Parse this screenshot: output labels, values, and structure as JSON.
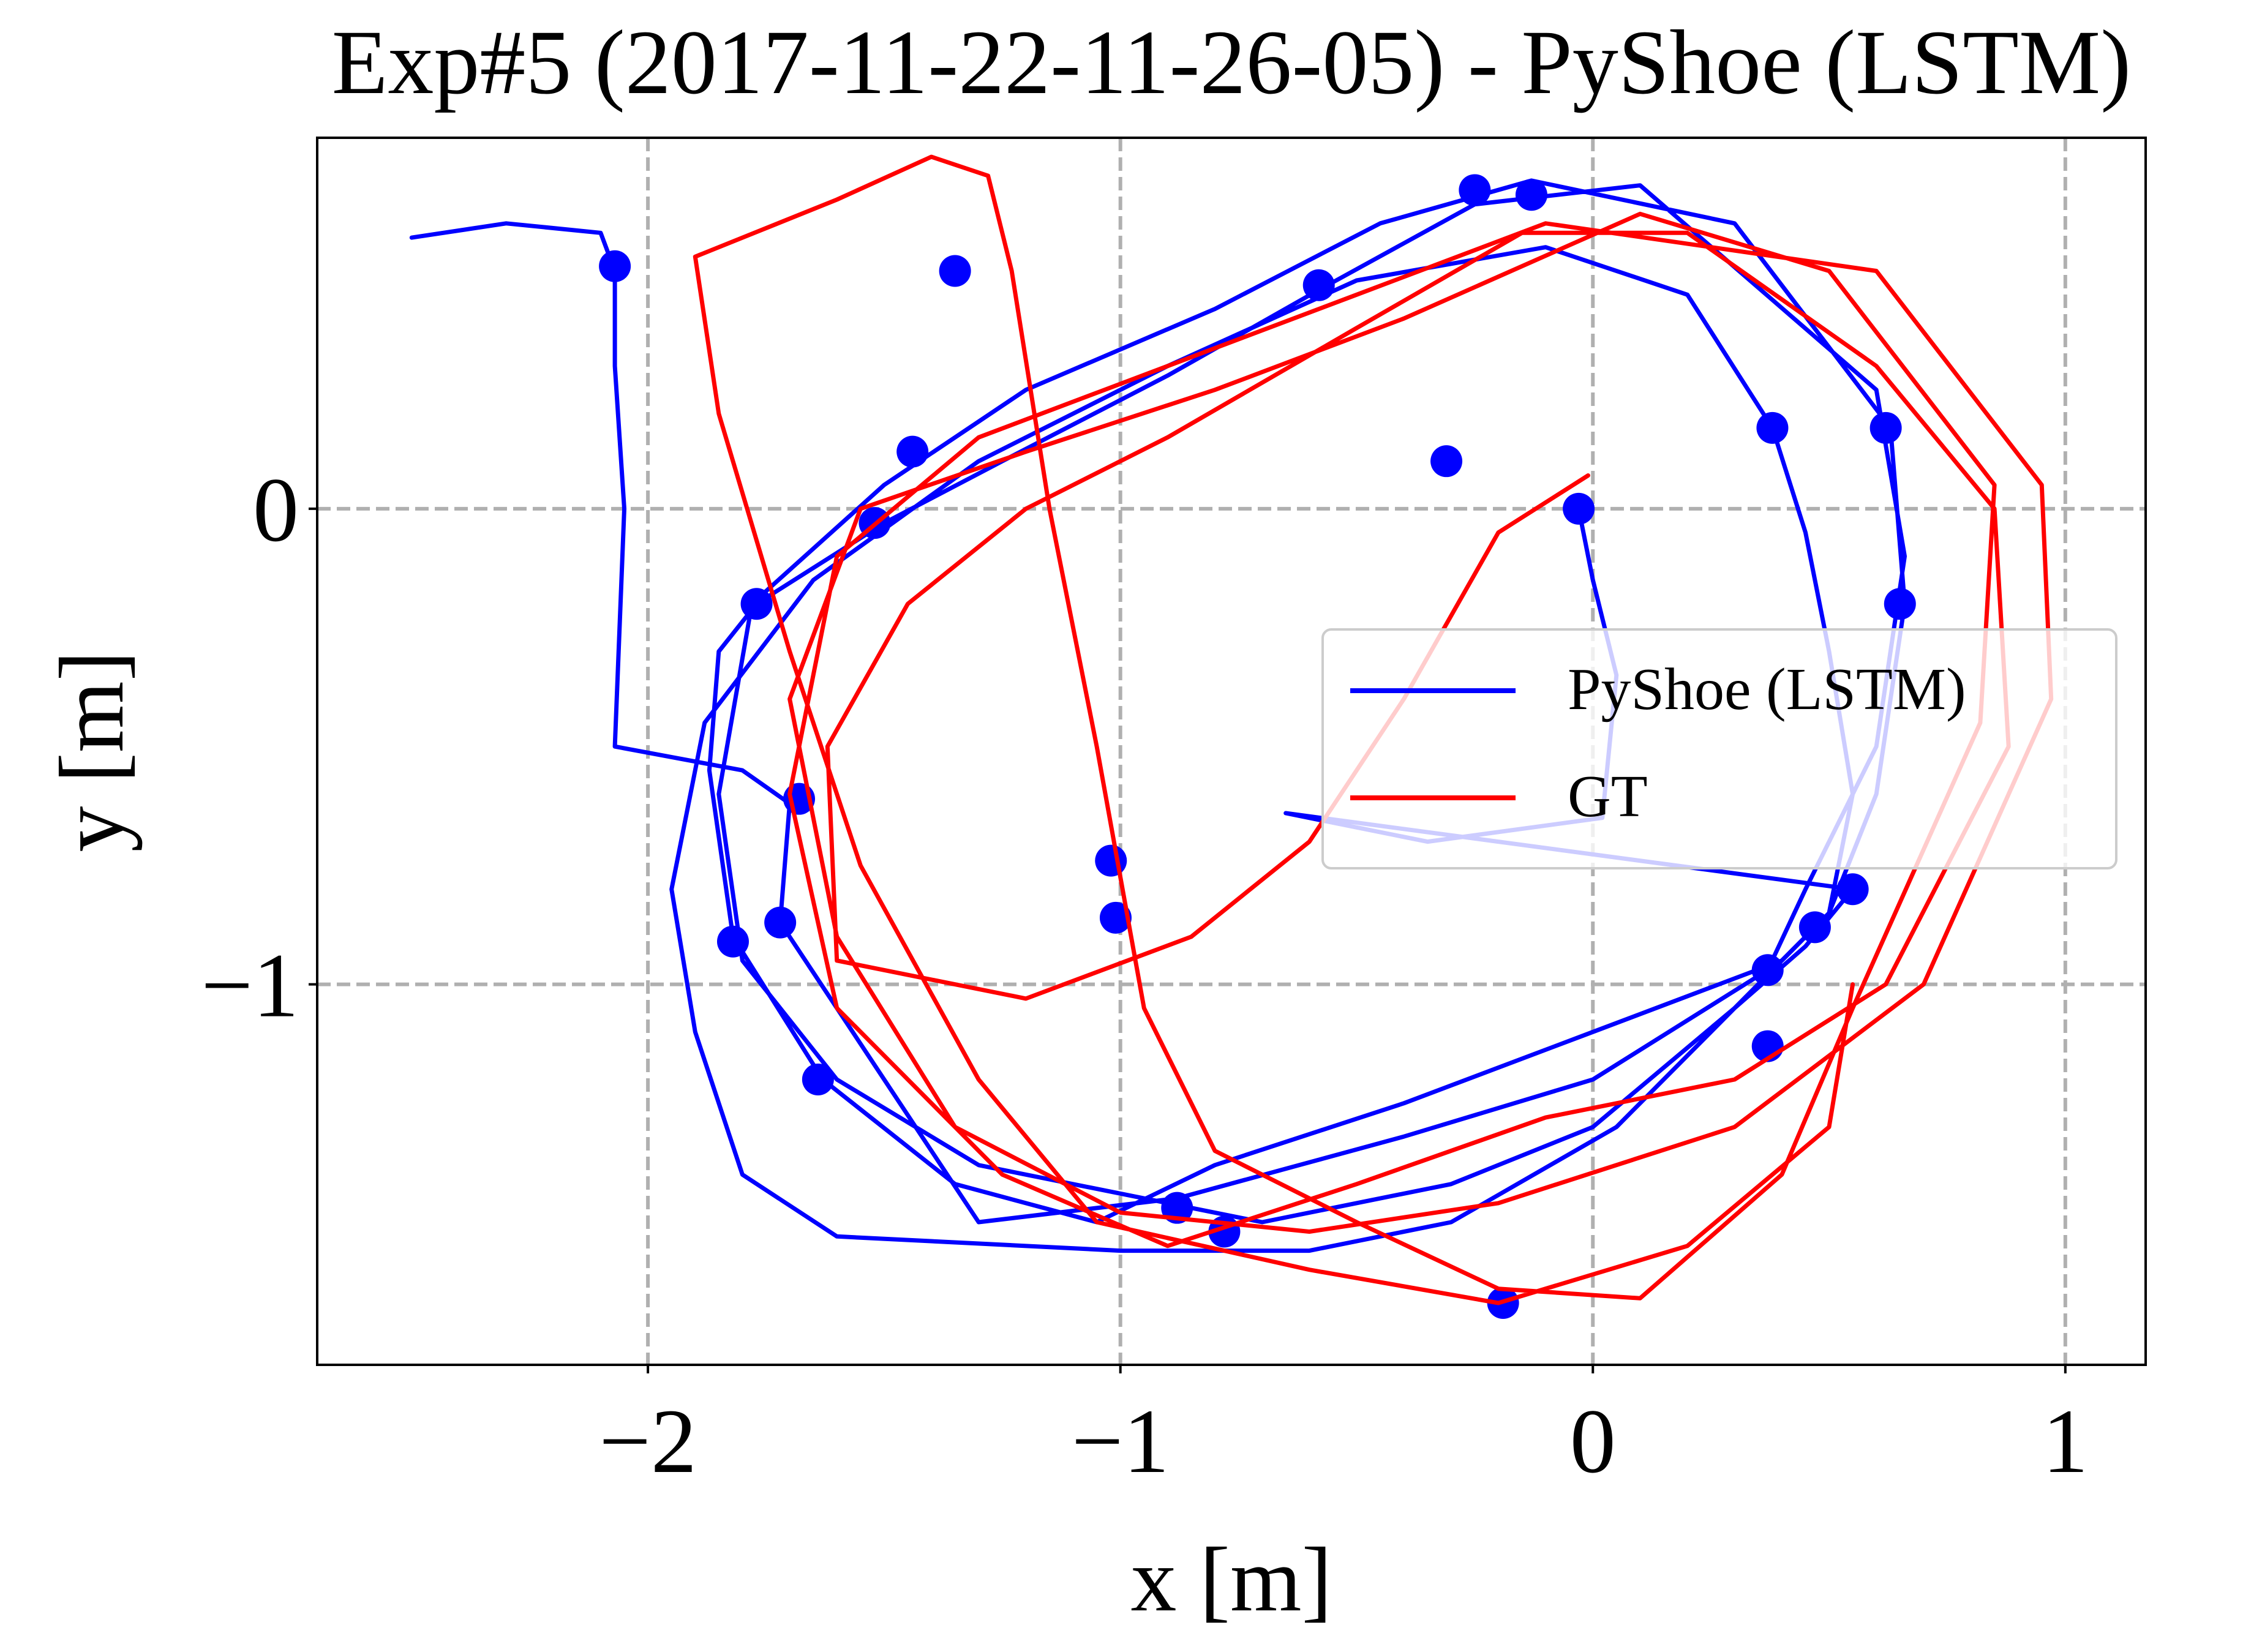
{
  "chart_data": {
    "type": "line",
    "title": "Exp#5 (2017-11-22-11-26-05) - PyShoe (LSTM)",
    "xlabel": "x [m]",
    "ylabel": "y [m]",
    "xlim": [
      -2.7,
      1.17
    ],
    "ylim": [
      -1.8,
      0.78
    ],
    "xticks": [
      -2,
      -1,
      0,
      1
    ],
    "xtick_labels": [
      "−2",
      "−1",
      "0",
      "1"
    ],
    "yticks": [
      0,
      -1
    ],
    "ytick_labels": [
      "0",
      "−1"
    ],
    "grid": true,
    "legend_position": "center-right",
    "series": [
      {
        "name": "PyShoe (LSTM)",
        "color": "#0000ff",
        "points": [
          [
            -0.03,
            0.0
          ],
          [
            0.0,
            -0.15
          ],
          [
            0.05,
            -0.35
          ],
          [
            0.02,
            -0.65
          ],
          [
            -0.35,
            -0.7
          ],
          [
            -0.65,
            -0.64
          ],
          [
            0.55,
            -0.8
          ],
          [
            0.45,
            -0.92
          ],
          [
            0.3,
            -1.05
          ],
          [
            0.05,
            -1.3
          ],
          [
            -0.3,
            -1.5
          ],
          [
            -0.6,
            -1.56
          ],
          [
            -1.0,
            -1.56
          ],
          [
            -1.6,
            -1.53
          ],
          [
            -1.8,
            -1.4
          ],
          [
            -1.9,
            -1.1
          ],
          [
            -1.95,
            -0.8
          ],
          [
            -1.88,
            -0.45
          ],
          [
            -1.65,
            -0.15
          ],
          [
            -1.3,
            0.1
          ],
          [
            -0.9,
            0.3
          ],
          [
            -0.5,
            0.48
          ],
          [
            -0.1,
            0.55
          ],
          [
            0.2,
            0.45
          ],
          [
            0.38,
            0.17
          ],
          [
            0.45,
            -0.05
          ],
          [
            0.5,
            -0.3
          ],
          [
            0.55,
            -0.6
          ],
          [
            0.5,
            -0.85
          ],
          [
            0.3,
            -1.05
          ],
          [
            0.0,
            -1.3
          ],
          [
            -0.3,
            -1.42
          ],
          [
            -0.7,
            -1.5
          ],
          [
            -0.9,
            -1.46
          ],
          [
            -1.3,
            -1.38
          ],
          [
            -1.6,
            -1.2
          ],
          [
            -1.8,
            -0.95
          ],
          [
            -1.85,
            -0.6
          ],
          [
            -1.78,
            -0.2
          ],
          [
            -1.5,
            0.05
          ],
          [
            -1.2,
            0.25
          ],
          [
            -0.8,
            0.42
          ],
          [
            -0.45,
            0.6
          ],
          [
            -0.13,
            0.69
          ],
          [
            0.3,
            0.6
          ],
          [
            0.63,
            0.17
          ],
          [
            0.66,
            -0.2
          ],
          [
            0.6,
            -0.6
          ],
          [
            0.5,
            -0.85
          ],
          [
            0.4,
            -0.95
          ],
          [
            0.0,
            -1.1
          ],
          [
            -0.4,
            -1.25
          ],
          [
            -0.8,
            -1.38
          ],
          [
            -1.05,
            -1.5
          ],
          [
            -1.35,
            -1.42
          ],
          [
            -1.63,
            -1.2
          ],
          [
            -1.82,
            -0.9
          ],
          [
            -1.87,
            -0.55
          ],
          [
            -1.85,
            -0.3
          ],
          [
            -1.77,
            -0.2
          ],
          [
            -1.5,
            -0.03
          ],
          [
            -1.25,
            0.1
          ],
          [
            -0.9,
            0.28
          ],
          [
            -0.58,
            0.46
          ],
          [
            -0.25,
            0.64
          ],
          [
            0.1,
            0.68
          ],
          [
            0.6,
            0.25
          ],
          [
            0.66,
            -0.1
          ],
          [
            0.6,
            -0.5
          ],
          [
            0.45,
            -0.8
          ],
          [
            0.37,
            -0.97
          ],
          [
            0.0,
            -1.2
          ],
          [
            -0.4,
            -1.32
          ],
          [
            -0.88,
            -1.45
          ],
          [
            -1.3,
            -1.5
          ],
          [
            -1.72,
            -0.87
          ],
          [
            -1.7,
            -0.62
          ],
          [
            -1.8,
            -0.55
          ],
          [
            -2.07,
            -0.5
          ],
          [
            -2.05,
            0.0
          ],
          [
            -2.07,
            0.3
          ],
          [
            -2.07,
            0.5
          ],
          [
            -2.1,
            0.58
          ],
          [
            -2.3,
            0.6
          ],
          [
            -2.5,
            0.57
          ]
        ],
        "markers": [
          [
            -0.03,
            0.0
          ],
          [
            -0.31,
            0.1
          ],
          [
            -1.01,
            -0.86
          ],
          [
            -1.02,
            -0.74
          ],
          [
            -1.68,
            -0.61
          ],
          [
            -2.07,
            0.51
          ],
          [
            -1.35,
            0.5
          ],
          [
            -1.44,
            0.12
          ],
          [
            -1.52,
            -0.03
          ],
          [
            -1.77,
            -0.2
          ],
          [
            -0.58,
            0.47
          ],
          [
            -0.25,
            0.67
          ],
          [
            -0.13,
            0.66
          ],
          [
            0.38,
            0.17
          ],
          [
            0.62,
            0.17
          ],
          [
            0.65,
            -0.2
          ],
          [
            0.55,
            -0.8
          ],
          [
            0.47,
            -0.88
          ],
          [
            0.37,
            -0.97
          ],
          [
            0.37,
            -1.13
          ],
          [
            -0.19,
            -1.67
          ],
          [
            -0.78,
            -1.52
          ],
          [
            -0.88,
            -1.47
          ],
          [
            -1.64,
            -1.2
          ],
          [
            -1.82,
            -0.91
          ],
          [
            -1.72,
            -0.87
          ]
        ]
      },
      {
        "name": "GT",
        "color": "#ff0000",
        "points": [
          [
            -0.01,
            0.07
          ],
          [
            -0.2,
            -0.05
          ],
          [
            -0.4,
            -0.4
          ],
          [
            -0.6,
            -0.7
          ],
          [
            -0.85,
            -0.9
          ],
          [
            -1.2,
            -1.03
          ],
          [
            -1.6,
            -0.95
          ],
          [
            -1.62,
            -0.5
          ],
          [
            -1.45,
            -0.2
          ],
          [
            -1.2,
            0.0
          ],
          [
            -0.9,
            0.15
          ],
          [
            -0.5,
            0.38
          ],
          [
            -0.15,
            0.58
          ],
          [
            0.2,
            0.58
          ],
          [
            0.6,
            0.3
          ],
          [
            0.85,
            0.0
          ],
          [
            0.88,
            -0.5
          ],
          [
            0.62,
            -1.0
          ],
          [
            0.3,
            -1.2
          ],
          [
            -0.1,
            -1.28
          ],
          [
            -0.5,
            -1.42
          ],
          [
            -0.9,
            -1.55
          ],
          [
            -1.25,
            -1.4
          ],
          [
            -1.6,
            -1.05
          ],
          [
            -1.7,
            -0.6
          ],
          [
            -1.6,
            -0.1
          ],
          [
            -1.3,
            0.15
          ],
          [
            -0.9,
            0.3
          ],
          [
            -0.5,
            0.45
          ],
          [
            -0.1,
            0.6
          ],
          [
            0.6,
            0.5
          ],
          [
            0.95,
            0.05
          ],
          [
            0.97,
            -0.4
          ],
          [
            0.7,
            -1.0
          ],
          [
            0.3,
            -1.3
          ],
          [
            -0.2,
            -1.46
          ],
          [
            -0.6,
            -1.52
          ],
          [
            -1.0,
            -1.48
          ],
          [
            -1.35,
            -1.3
          ],
          [
            -1.6,
            -0.9
          ],
          [
            -1.7,
            -0.4
          ],
          [
            -1.55,
            0.0
          ],
          [
            -1.2,
            0.12
          ],
          [
            -0.8,
            0.25
          ],
          [
            -0.4,
            0.4
          ],
          [
            0.1,
            0.62
          ],
          [
            0.5,
            0.5
          ],
          [
            0.85,
            0.05
          ],
          [
            0.82,
            -0.45
          ],
          [
            0.55,
            -1.05
          ],
          [
            0.4,
            -1.4
          ],
          [
            0.1,
            -1.66
          ],
          [
            -0.2,
            -1.64
          ],
          [
            -0.5,
            -1.5
          ],
          [
            -0.8,
            -1.35
          ],
          [
            -0.95,
            -1.05
          ],
          [
            -1.05,
            -0.5
          ],
          [
            -1.15,
            0.0
          ],
          [
            -1.23,
            0.5
          ],
          [
            -1.28,
            0.7
          ],
          [
            -1.4,
            0.74
          ],
          [
            -1.6,
            0.65
          ],
          [
            -1.9,
            0.53
          ],
          [
            -1.85,
            0.2
          ],
          [
            -1.7,
            -0.3
          ],
          [
            -1.55,
            -0.75
          ],
          [
            -1.3,
            -1.2
          ],
          [
            -1.05,
            -1.5
          ],
          [
            -0.6,
            -1.6
          ],
          [
            -0.2,
            -1.67
          ],
          [
            0.2,
            -1.55
          ],
          [
            0.5,
            -1.3
          ],
          [
            0.55,
            -1.0
          ]
        ]
      }
    ]
  }
}
